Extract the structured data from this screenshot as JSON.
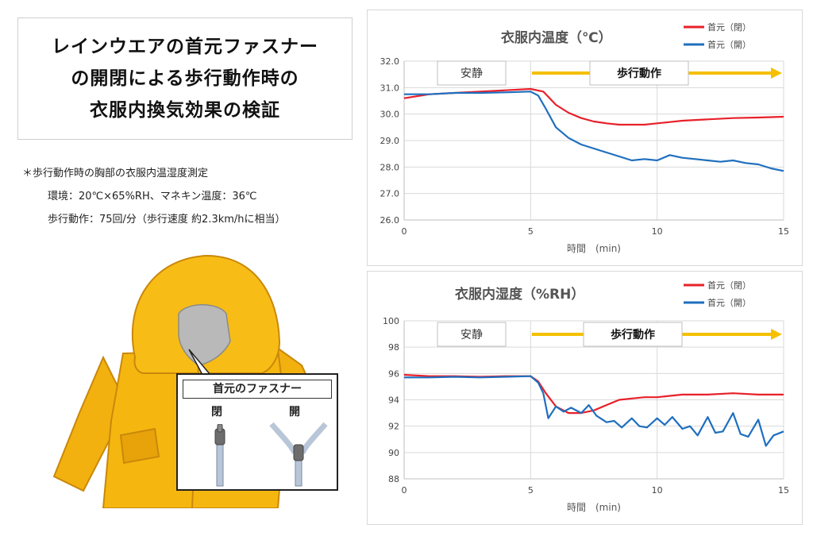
{
  "title_lines": [
    "レインウエアの首元ファスナー",
    "の開閉による歩行動作時の",
    "衣服内換気効果の検証"
  ],
  "notes": [
    "＊歩行動作時の胸部の衣服内温湿度測定",
    "環境：20℃×65%RH、マネキン温度：36℃",
    "歩行動作：75回/分（歩行速度 約2.3km/hに相当）"
  ],
  "zipper_box": {
    "title": "首元のファスナー",
    "closed": "閉",
    "open": "開"
  },
  "colors": {
    "closed": "#e8202a",
    "open": "#1f6fbf",
    "arrow": "#f5c000"
  },
  "icons": [
    "raincoat-icon",
    "zipper-closed-icon",
    "zipper-open-icon"
  ],
  "chart_data": [
    {
      "type": "line",
      "title": "衣服内温度（℃）",
      "xlabel": "時間　(min)",
      "xlim": [
        0,
        15
      ],
      "ylim": [
        26.0,
        32.0
      ],
      "xticks": [
        0,
        5,
        10,
        15
      ],
      "xtick_labels": [
        "0",
        "5",
        "10",
        "15"
      ],
      "yticks": [
        26,
        27,
        28,
        29,
        30,
        31,
        32
      ],
      "ytick_labels": [
        "26.0",
        "27.0",
        "28.0",
        "29.0",
        "30.0",
        "31.0",
        "32.0"
      ],
      "grid": true,
      "legend_position": "top-right",
      "annotations": {
        "rest": "安静",
        "walk": "歩行動作"
      },
      "series": [
        {
          "name": "首元（閉）",
          "color": "#e8202a",
          "x": [
            0,
            1,
            2,
            3,
            4,
            5,
            5.5,
            6,
            6.5,
            7,
            7.5,
            8,
            8.5,
            9,
            9.5,
            10,
            10.5,
            11,
            12,
            13,
            14,
            15
          ],
          "y": [
            30.6,
            30.75,
            30.8,
            30.85,
            30.9,
            30.95,
            30.85,
            30.35,
            30.05,
            29.85,
            29.72,
            29.65,
            29.6,
            29.6,
            29.6,
            29.65,
            29.7,
            29.75,
            29.8,
            29.85,
            29.87,
            29.9
          ]
        },
        {
          "name": "首元（開）",
          "color": "#1f6fbf",
          "x": [
            0,
            1,
            2,
            3,
            4,
            5,
            5.3,
            5.6,
            6,
            6.5,
            7,
            7.5,
            8,
            8.5,
            9,
            9.5,
            10,
            10.5,
            11,
            11.5,
            12,
            12.5,
            13,
            13.5,
            14,
            14.5,
            15
          ],
          "y": [
            30.75,
            30.75,
            30.8,
            30.8,
            30.82,
            30.85,
            30.7,
            30.2,
            29.5,
            29.1,
            28.85,
            28.7,
            28.55,
            28.4,
            28.25,
            28.3,
            28.25,
            28.45,
            28.35,
            28.3,
            28.25,
            28.2,
            28.25,
            28.15,
            28.1,
            27.95,
            27.85
          ]
        }
      ]
    },
    {
      "type": "line",
      "title": "衣服内湿度（%RH）",
      "xlabel": "時間　(min)",
      "xlim": [
        0,
        15
      ],
      "ylim": [
        88,
        100
      ],
      "xticks": [
        0,
        5,
        10,
        15
      ],
      "xtick_labels": [
        "0",
        "5",
        "10",
        "15"
      ],
      "yticks": [
        88,
        90,
        92,
        94,
        96,
        98,
        100
      ],
      "ytick_labels": [
        "88",
        "90",
        "92",
        "94",
        "96",
        "98",
        "100"
      ],
      "grid": true,
      "legend_position": "top-right",
      "annotations": {
        "rest": "安静",
        "walk": "歩行動作"
      },
      "series": [
        {
          "name": "首元（閉）",
          "color": "#e8202a",
          "x": [
            0,
            1,
            2,
            3,
            4,
            5,
            5.3,
            5.6,
            6,
            6.5,
            7,
            7.5,
            8,
            8.5,
            9,
            9.5,
            10,
            10.5,
            11,
            12,
            13,
            14,
            15
          ],
          "y": [
            95.9,
            95.8,
            95.8,
            95.75,
            95.8,
            95.8,
            95.4,
            94.5,
            93.5,
            93.0,
            93.0,
            93.2,
            93.6,
            94.0,
            94.1,
            94.2,
            94.2,
            94.3,
            94.4,
            94.4,
            94.5,
            94.4,
            94.4
          ]
        },
        {
          "name": "首元（開）",
          "color": "#1f6fbf",
          "x": [
            0,
            1,
            2,
            3,
            4,
            5,
            5.3,
            5.5,
            5.7,
            6,
            6.3,
            6.6,
            7,
            7.3,
            7.6,
            8,
            8.3,
            8.6,
            9,
            9.3,
            9.6,
            10,
            10.3,
            10.6,
            11,
            11.3,
            11.6,
            12,
            12.3,
            12.6,
            13,
            13.3,
            13.6,
            14,
            14.3,
            14.6,
            15
          ],
          "y": [
            95.7,
            95.7,
            95.75,
            95.7,
            95.75,
            95.8,
            95.3,
            94.5,
            92.6,
            93.5,
            93.1,
            93.4,
            93.0,
            93.6,
            92.8,
            92.3,
            92.4,
            91.9,
            92.6,
            92.0,
            91.9,
            92.6,
            92.1,
            92.7,
            91.8,
            92.0,
            91.3,
            92.7,
            91.5,
            91.6,
            93.0,
            91.4,
            91.2,
            92.5,
            90.5,
            91.3,
            91.6
          ]
        }
      ]
    }
  ]
}
